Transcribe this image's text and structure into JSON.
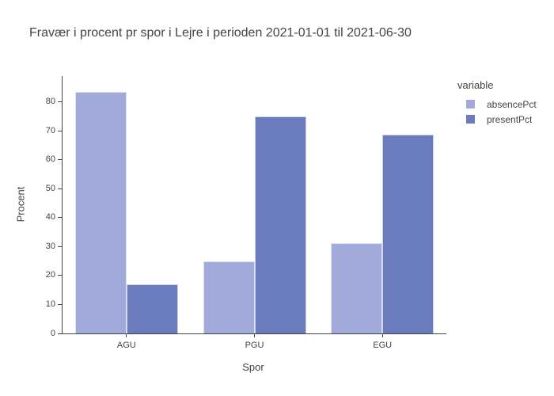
{
  "chart_data": {
    "type": "bar",
    "title": "Fravær i procent pr spor i Lejre i perioden 2021-01-01 til 2021-06-30",
    "xlabel": "Spor",
    "ylabel": "Procent",
    "categories": [
      "AGU",
      "PGU",
      "EGU"
    ],
    "series": [
      {
        "name": "absencePct",
        "color": "#A1AADB",
        "values": [
          83.5,
          25.0,
          31.3
        ]
      },
      {
        "name": "presentPct",
        "color": "#6B7CBE",
        "values": [
          16.9,
          75.1,
          68.7
        ]
      }
    ],
    "ylim": [
      0,
      89
    ],
    "yticks": [
      0,
      10,
      20,
      30,
      40,
      50,
      60,
      70,
      80
    ],
    "grid": false,
    "legend": {
      "title": "variable",
      "position": "top-right-outside"
    }
  },
  "colors": {
    "background": "#ffffff",
    "axis": "#444444",
    "text": "#444444"
  }
}
